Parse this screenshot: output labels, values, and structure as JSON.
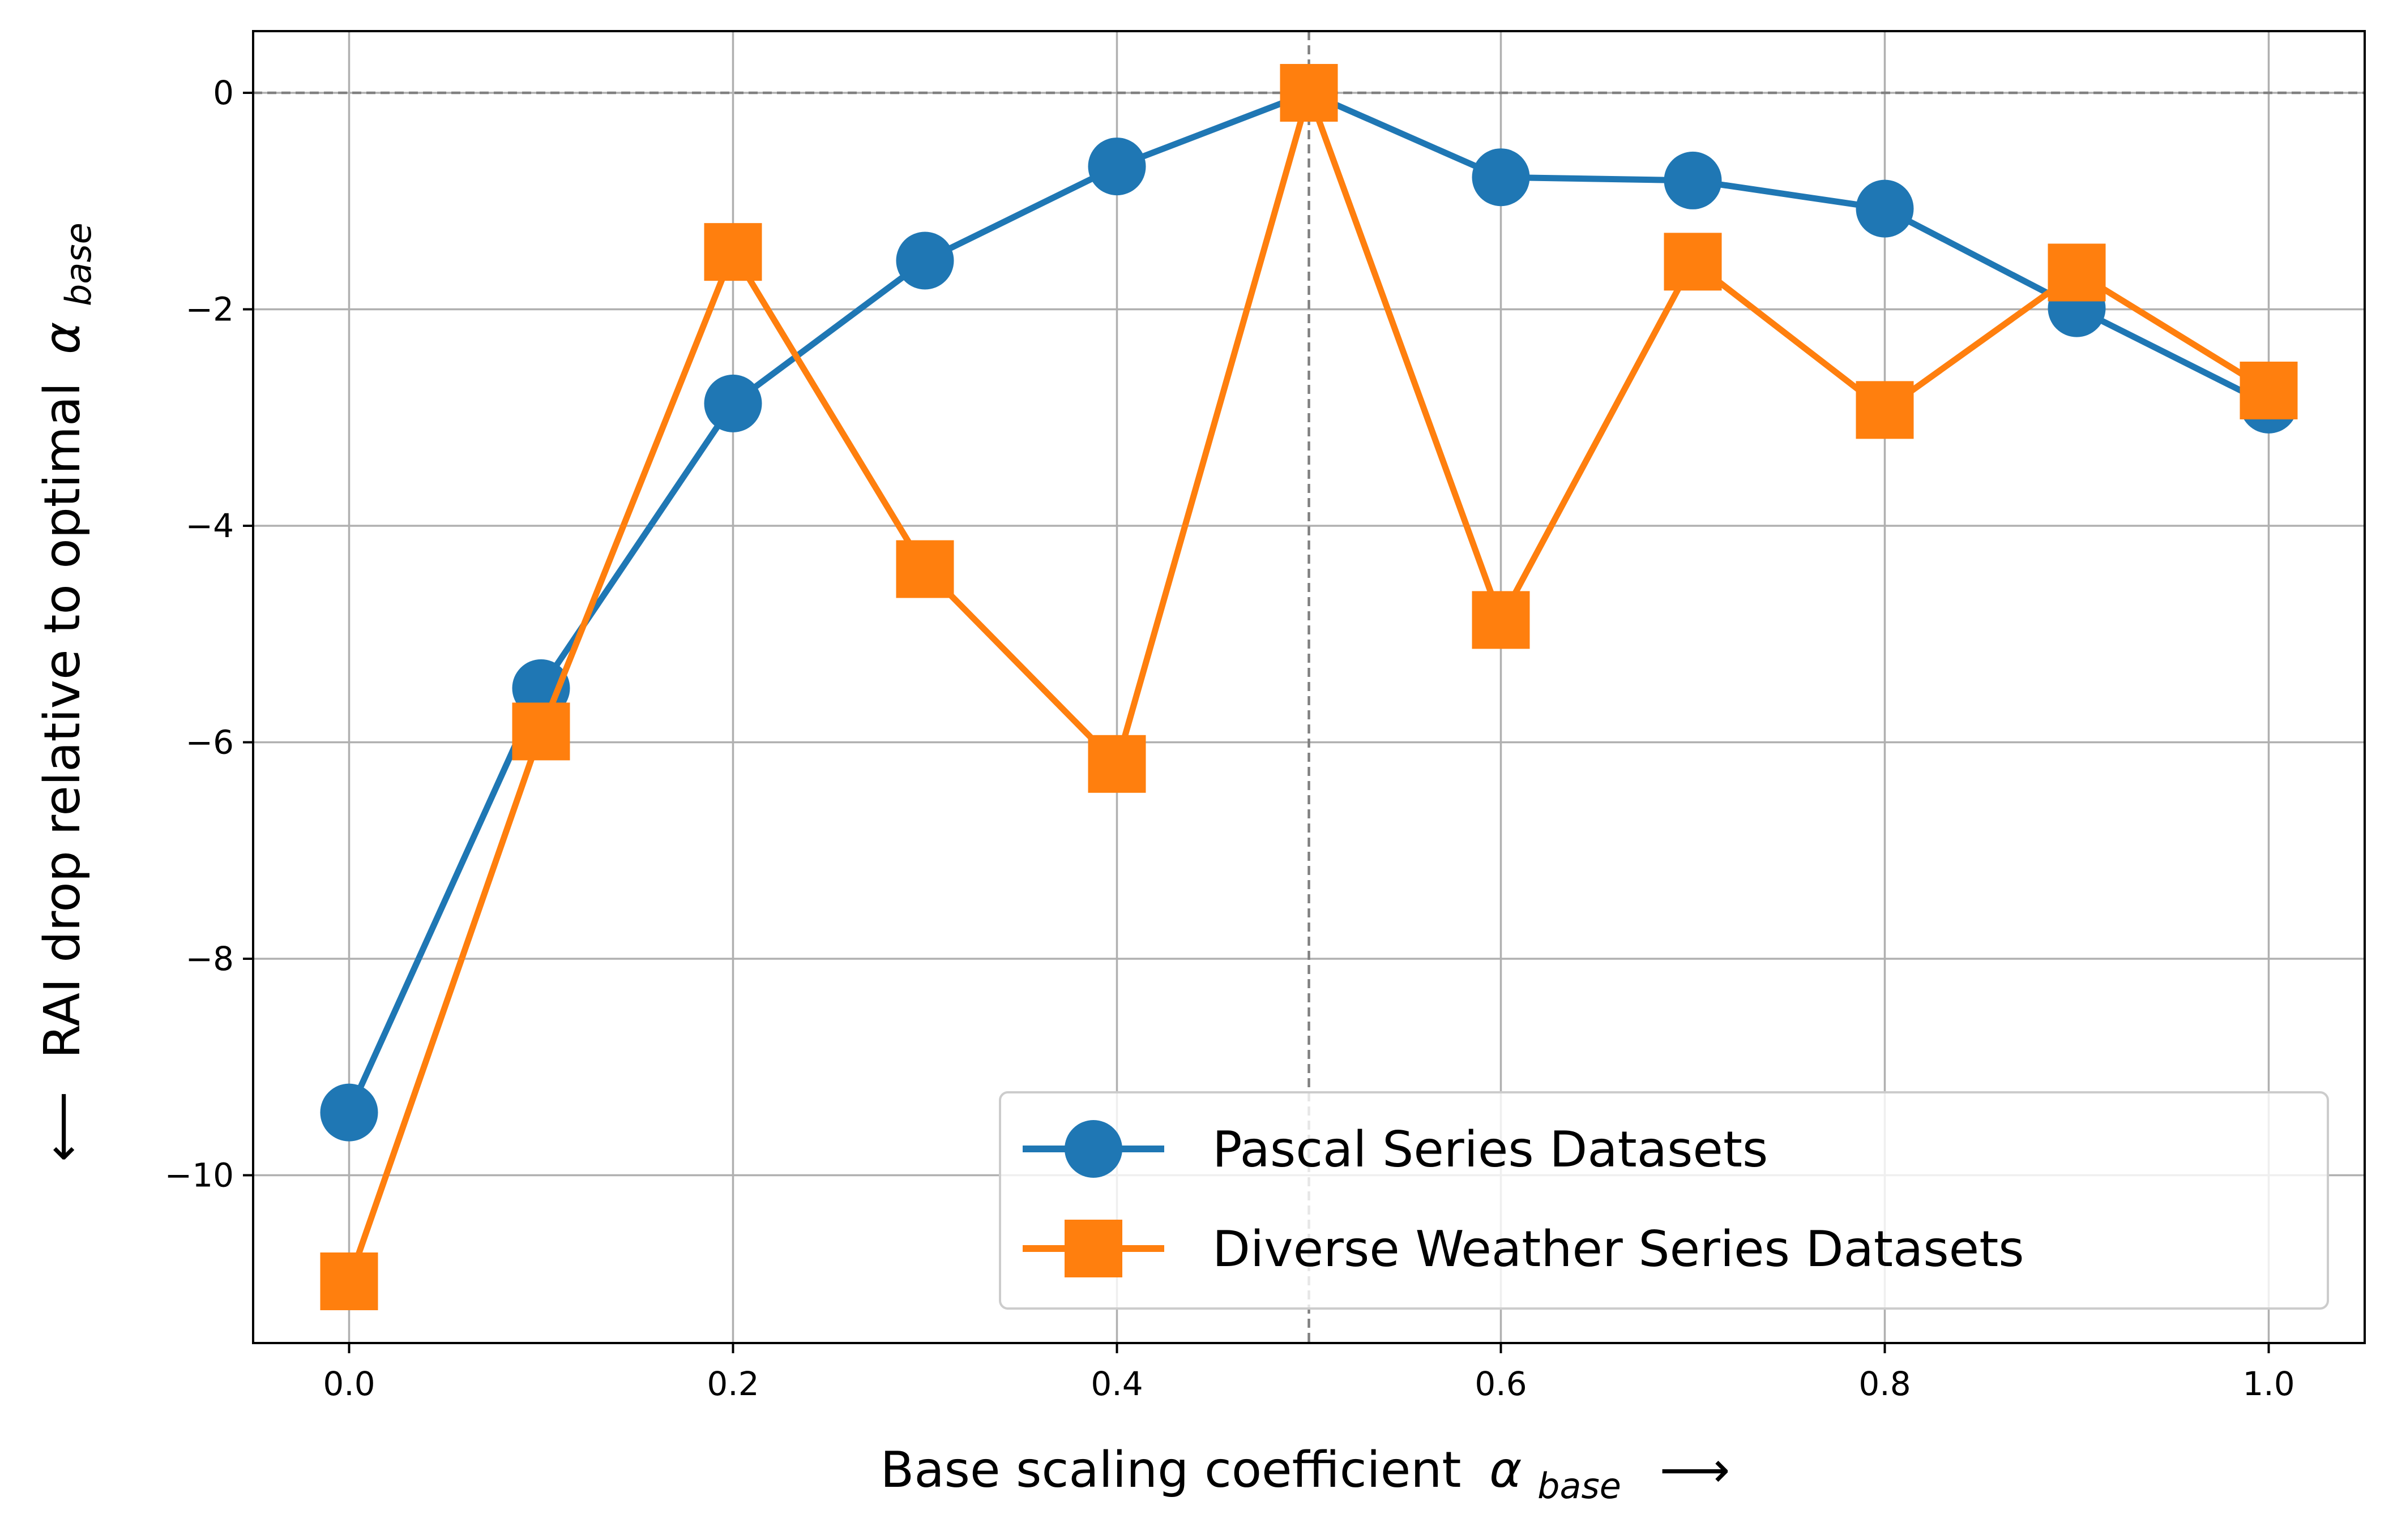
{
  "chart_data": {
    "type": "line",
    "title": "",
    "xlabel": "Base scaling coefficient",
    "xlabel_symbol": "α",
    "xlabel_subscript": "base",
    "xlabel_arrow": "⟶",
    "ylabel_arrow": "⟵",
    "ylabel": "RAI drop relative to optimal",
    "ylabel_symbol": "α",
    "ylabel_subscript": "base",
    "x": [
      0.0,
      0.1,
      0.2,
      0.3,
      0.4,
      0.5,
      0.6,
      0.7,
      0.8,
      0.9,
      1.0
    ],
    "series": [
      {
        "name": "Pascal Series Datasets",
        "color": "#1f77b4",
        "marker": "circle",
        "values": [
          -9.42,
          -5.5,
          -2.87,
          -1.55,
          -0.68,
          0.0,
          -0.78,
          -0.81,
          -1.07,
          -1.99,
          -2.88
        ]
      },
      {
        "name": "Diverse Weather Series Datasets",
        "color": "#ff7f0e",
        "marker": "square",
        "values": [
          -10.98,
          -5.9,
          -1.47,
          -4.4,
          -6.2,
          0.0,
          -4.87,
          -1.56,
          -2.93,
          -1.66,
          -2.75
        ]
      }
    ],
    "xlim": [
      -0.05,
      1.05
    ],
    "ylim": [
      -11.55,
      0.57
    ],
    "xticks": [
      0.0,
      0.2,
      0.4,
      0.6,
      0.8,
      1.0
    ],
    "xtick_labels": [
      "0.0",
      "0.2",
      "0.4",
      "0.6",
      "0.8",
      "1.0"
    ],
    "yticks": [
      0,
      -2,
      -4,
      -6,
      -8,
      -10
    ],
    "ytick_labels": [
      "0",
      "−2",
      "−4",
      "−6",
      "−8",
      "−10"
    ],
    "grid": true,
    "reference_lines": {
      "vertical_x": 0.5,
      "horizontal_y": 0
    },
    "legend_position": "lower-right"
  }
}
